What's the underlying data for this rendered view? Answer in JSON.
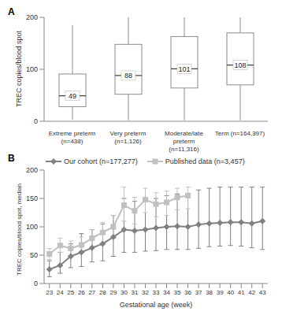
{
  "chart_data": [
    {
      "type": "box",
      "title": "A",
      "categories": [
        "Extreme preterm (n=438)",
        "Very preterm (n=1,126)",
        "Moderate/late preterm (n=11,316)",
        "Term (n=164,397)"
      ],
      "whisker_low": [
        3,
        2,
        2,
        2
      ],
      "q1": [
        28,
        52,
        64,
        70
      ],
      "medians": [
        49,
        88,
        101,
        108
      ],
      "q3": [
        91,
        148,
        163,
        170
      ],
      "whisker_high": [
        185,
        200,
        200,
        200
      ],
      "data_labels": true,
      "color": "#8c8c8c",
      "ylabel": "TREC copies/blood spot",
      "ylim": [
        0,
        200
      ],
      "yticks": [
        0,
        100,
        200
      ]
    },
    {
      "type": "line",
      "title": "B",
      "x": [
        23,
        24,
        25,
        26,
        27,
        28,
        29,
        30,
        31,
        32,
        33,
        34,
        35,
        36,
        37,
        38,
        39,
        40,
        41,
        42,
        43
      ],
      "xlim": [
        22.5,
        43.5
      ],
      "xticks": [
        23,
        24,
        25,
        26,
        27,
        28,
        29,
        30,
        31,
        32,
        33,
        34,
        35,
        36,
        37,
        38,
        39,
        40,
        41,
        42,
        43
      ],
      "ylim": [
        0,
        200
      ],
      "yticks": [
        0,
        50,
        100,
        150,
        200
      ],
      "xlabel": "Gestational age (week)",
      "ylabel": "TREC copies/blood spot, median",
      "legend": "top-left",
      "series": [
        {
          "name": "Our cohort (n=177,277)",
          "color": "#808080",
          "marker": "diamond",
          "values": [
            25,
            32,
            48,
            55,
            63,
            70,
            82,
            95,
            93,
            95,
            98,
            100,
            101,
            100,
            104,
            106,
            107,
            108,
            108,
            106,
            110
          ],
          "lower": [
            12,
            18,
            28,
            30,
            38,
            40,
            48,
            55,
            55,
            57,
            58,
            60,
            60,
            60,
            62,
            65,
            66,
            67,
            66,
            63,
            60
          ],
          "upper": [
            40,
            55,
            70,
            88,
            95,
            105,
            120,
            150,
            145,
            150,
            150,
            155,
            158,
            158,
            165,
            168,
            170,
            170,
            170,
            170,
            170
          ]
        },
        {
          "name": "Published data (n=3,457)",
          "color": "#c0c0c0",
          "marker": "square",
          "values": [
            52,
            67,
            62,
            68,
            80,
            90,
            100,
            138,
            128,
            148,
            140,
            143,
            152,
            155,
            null,
            null,
            null,
            null,
            null,
            null,
            null
          ],
          "lower": [
            42,
            55,
            50,
            55,
            65,
            72,
            80,
            110,
            105,
            125,
            118,
            120,
            130,
            132,
            null,
            null,
            null,
            null,
            null,
            null,
            null
          ],
          "upper": [
            62,
            80,
            75,
            82,
            95,
            108,
            120,
            170,
            152,
            168,
            160,
            163,
            168,
            170,
            null,
            null,
            null,
            null,
            null,
            null,
            null
          ]
        }
      ]
    }
  ]
}
